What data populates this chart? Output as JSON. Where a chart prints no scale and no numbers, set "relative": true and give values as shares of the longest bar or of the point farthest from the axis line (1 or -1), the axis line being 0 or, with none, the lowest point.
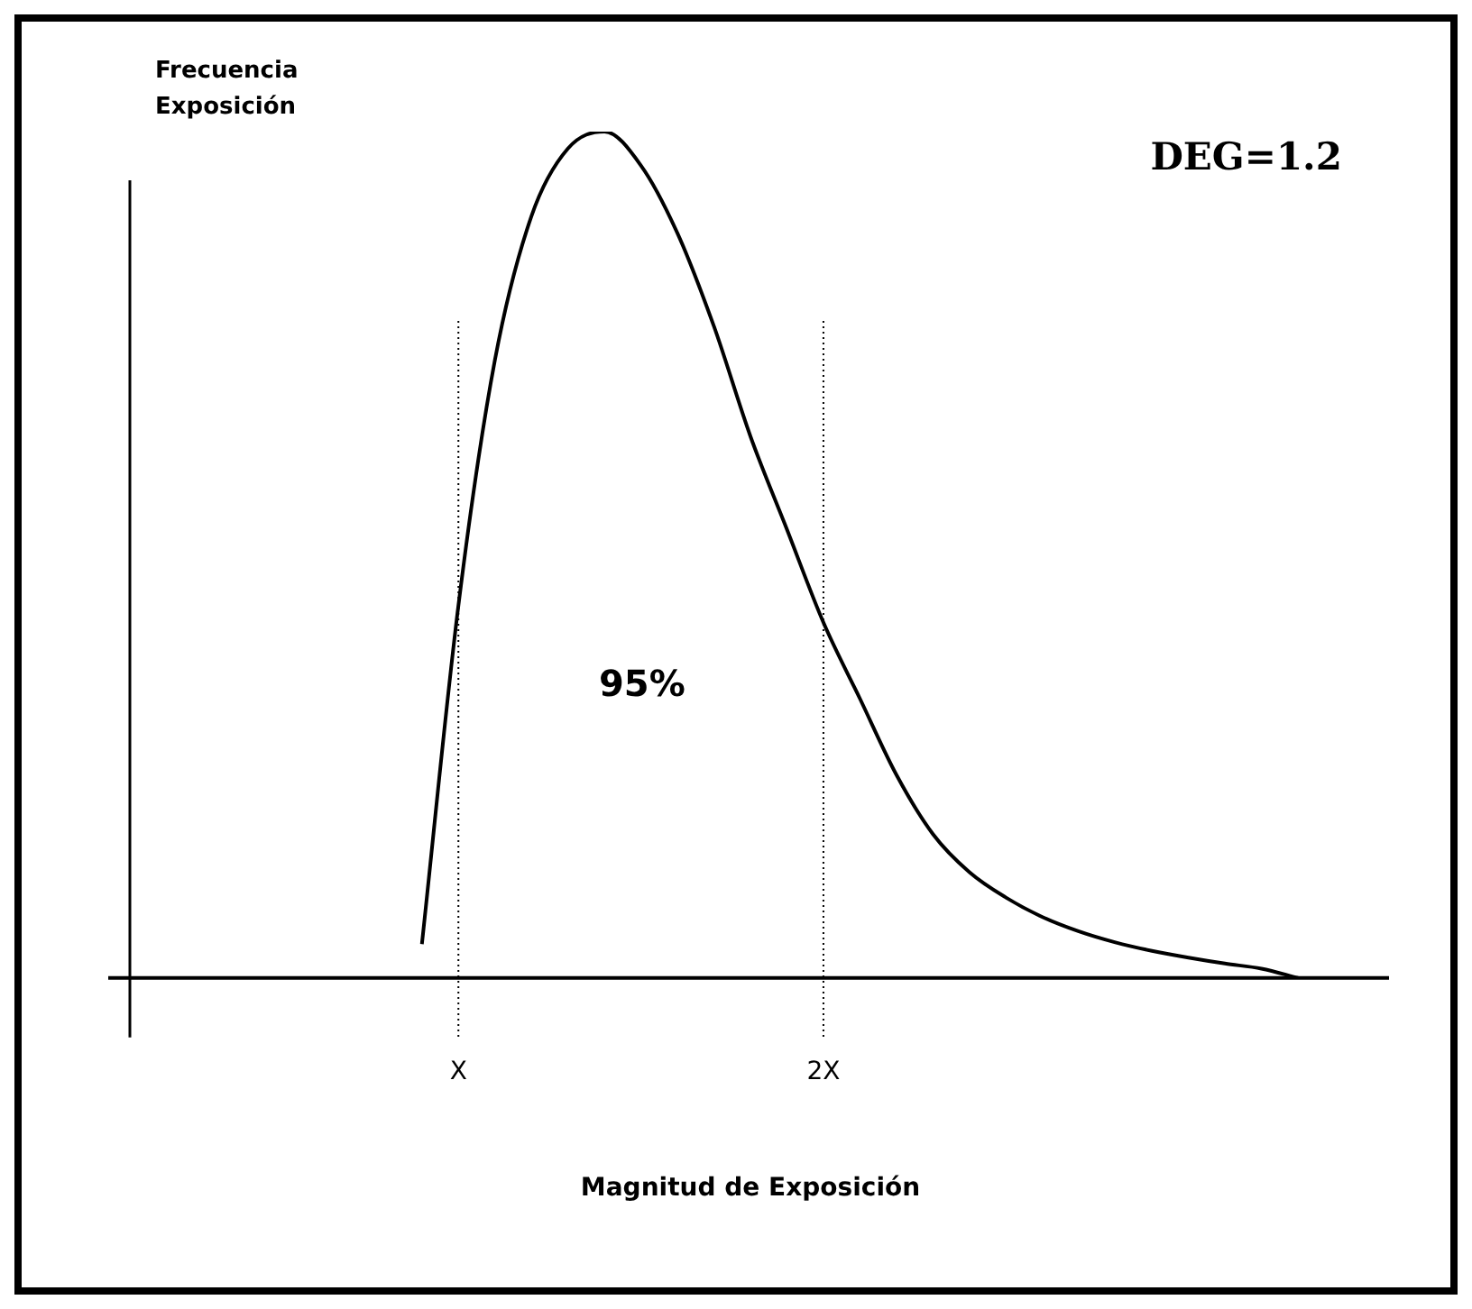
{
  "chart_data": {
    "type": "line",
    "relative": true,
    "ylabel": "Frecuencia Exposición",
    "xlabel": "Magnitud de Exposición",
    "annotations": [
      "DEG=1.2",
      "95%"
    ],
    "categories": [
      null,
      null,
      null,
      null,
      null,
      null,
      null,
      null,
      null,
      "X",
      null,
      null,
      null,
      null,
      null,
      null,
      null,
      null,
      null,
      "2X",
      null,
      null,
      null,
      null,
      null,
      null,
      null,
      null,
      null,
      null,
      null,
      null,
      null,
      null,
      null
    ],
    "grid": false,
    "legend": false,
    "marker": "none",
    "line_style": "solid",
    "ref_lines": [
      {
        "axis": "x",
        "value": "X",
        "line_style": "dotted",
        "color": "#000000"
      },
      {
        "axis": "x",
        "value": "2X",
        "line_style": "dotted",
        "color": "#000000"
      }
    ],
    "series": [
      {
        "color": "#000000",
        "values": [
          null,
          null,
          null,
          null,
          null,
          null,
          null,
          null,
          0.04,
          0.44,
          0.73,
          0.9,
          0.98,
          1,
          0.96,
          0.88,
          0.77,
          0.64,
          0.53,
          0.42,
          0.33,
          0.24,
          0.17,
          0.125,
          0.095,
          0.072,
          0.055,
          0.042,
          0.032,
          0.024,
          0.017,
          0.011,
          0,
          null,
          null
        ]
      }
    ]
  }
}
